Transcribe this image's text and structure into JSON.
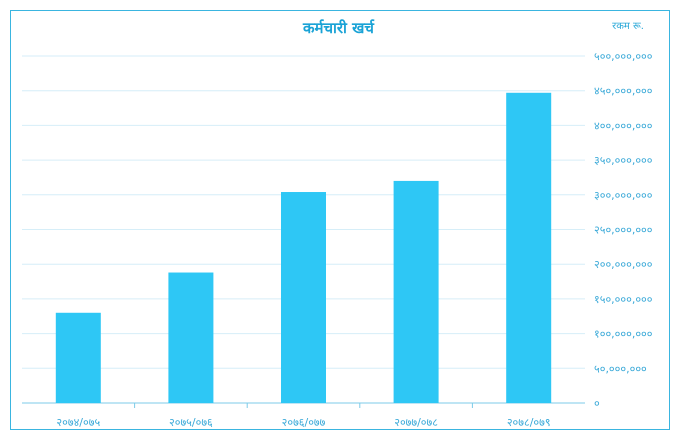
{
  "chart_data": {
    "type": "bar",
    "title": "कर्मचारी खर्च",
    "unit_label": "रकम रू.",
    "categories": [
      "२०७४/०७५",
      "२०७५/०७६",
      "२०७६/०७७",
      "२०७७/०७८",
      "२०७८/०७९"
    ],
    "values": [
      130000000,
      188000000,
      304000000,
      320000000,
      447000000
    ],
    "ylim": [
      0,
      500000000
    ],
    "y_ticks": [
      {
        "value": 0,
        "label": "०"
      },
      {
        "value": 50000000,
        "label": "५०,०००,०००"
      },
      {
        "value": 100000000,
        "label": "१००,०००,०००"
      },
      {
        "value": 150000000,
        "label": "१५०,०००,०००"
      },
      {
        "value": 200000000,
        "label": "२००,०००,०००"
      },
      {
        "value": 250000000,
        "label": "२५०,०००,०००"
      },
      {
        "value": 300000000,
        "label": "३००,०००,०००"
      },
      {
        "value": 350000000,
        "label": "३५०,०००,०००"
      },
      {
        "value": 400000000,
        "label": "४००,०००,०००"
      },
      {
        "value": 450000000,
        "label": "४५०,०००,०००"
      },
      {
        "value": 500000000,
        "label": "५००,०००,०००"
      }
    ],
    "y_axis_side": "right",
    "grid": true,
    "legend": "none",
    "bar_color": "#2ec7f5",
    "grid_color": "#d6eef8",
    "text_color": "#3aa9d8"
  }
}
